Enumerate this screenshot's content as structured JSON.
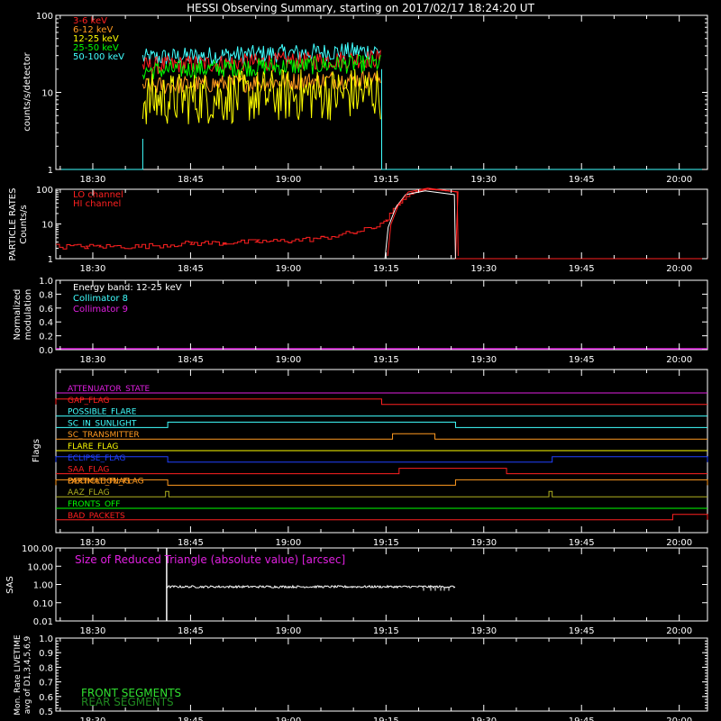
{
  "title": "HESSI Observing Summary, starting on 2017/02/17 18:24:20 UT",
  "time_ticks": [
    "18:30",
    "18:45",
    "19:00",
    "19:15",
    "19:30",
    "19:45",
    "20:00"
  ],
  "colors": {
    "background": "#000000",
    "frame": "#ffffff",
    "red": "#ff2020",
    "orange": "#ff9a20",
    "yellow": "#ffff00",
    "green": "#00ff00",
    "cyan": "#40ffff",
    "magenta": "#e020e0",
    "blue": "#2040ff",
    "olive": "#b0b020",
    "mon_front": "#30e030",
    "mon_rear": "#208a20"
  },
  "panels": {
    "count_rates": {
      "ylabel": "counts/s/detector",
      "yticks": [
        "1",
        "10",
        "100"
      ],
      "legend": [
        "3-6 keV",
        "6-12 keV",
        "12-25 keV",
        "25-50 keV",
        "50-100 keV"
      ]
    },
    "particle_rates": {
      "ylabel_top": "PARTICLE RATES",
      "ylabel_bottom": "Counts/s",
      "yticks": [
        "1",
        "10",
        "100"
      ],
      "legend": [
        "LO channel",
        "HI channel"
      ]
    },
    "modulation": {
      "ylabel_top": "Normalized",
      "ylabel_bottom": "modulation",
      "yticks": [
        "0.0",
        "0.2",
        "0.4",
        "0.6",
        "0.8",
        "1.0"
      ],
      "legend": [
        "Energy band: 12-25 keV",
        "Collimator 8",
        "Collimator 9"
      ]
    },
    "flags": {
      "ylabel": "Flags",
      "labels": [
        "ATTENUATOR_STATE",
        "GAP_FLAG",
        "POSSIBLE_FLARE",
        "SC_IN_SUNLIGHT",
        "SC_TRANSMITTER",
        "FLARE_FLAG",
        "ECLIPSE_FLAG",
        "SAA_FLAG",
        "PARTICLE_FLAG",
        "AAZ_FLAG",
        "FRONTS_OFF",
        "BAD_PACKETS"
      ],
      "overlap_label": "DECIMATION_FLAG"
    },
    "sas": {
      "ylabel": "SAS",
      "yticks": [
        "0.01",
        "0.10",
        "1.00",
        "10.00",
        "100.00"
      ],
      "annotation": "Size of Reduced Triangle (absolute value) [arcsec]"
    },
    "monitor": {
      "ylabel_lines": [
        "Mon. Rate LIVETIME",
        "avg of D1,3,4,5,6,9"
      ],
      "yticks": [
        "0.5",
        "0.6",
        "0.7",
        "0.8",
        "0.9",
        "1.0"
      ],
      "legend": [
        "FRONT SEGMENTS",
        "REAR SEGMENTS"
      ]
    }
  },
  "chart_data": [
    {
      "type": "line",
      "panel": "count_rates",
      "ylabel": "counts/s/detector",
      "yscale": "log",
      "ylim": [
        1,
        100
      ],
      "xlim": [
        "18:24:20",
        "20:04:20"
      ],
      "data_interval": [
        "18:37:40",
        "19:14:20"
      ],
      "series": [
        {
          "name": "3-6 keV",
          "color": "red",
          "level": 22
        },
        {
          "name": "6-12 keV",
          "color": "orange",
          "level": 12
        },
        {
          "name": "12-25 keV",
          "color": "yellow",
          "level": 8
        },
        {
          "name": "25-50 keV",
          "color": "green",
          "level": 19
        },
        {
          "name": "50-100 keV",
          "color": "cyan",
          "level": 28
        }
      ]
    },
    {
      "type": "line",
      "panel": "particle_rates",
      "ylabel": "Counts/s",
      "yscale": "log",
      "ylim": [
        1,
        100
      ],
      "xlim": [
        "18:24:20",
        "20:04:20"
      ],
      "series": [
        {
          "name": "LO channel",
          "color": "red",
          "points": [
            [
              "18:24:20",
              2.2
            ],
            [
              "18:29:00",
              2.2
            ],
            [
              "18:31:00",
              2.2
            ],
            [
              "18:37:00",
              2.2
            ],
            [
              "18:45:00",
              2.7
            ],
            [
              "18:50:00",
              2.8
            ],
            [
              "18:55:00",
              3.0
            ],
            [
              "19:00:00",
              3.2
            ],
            [
              "19:05:00",
              3.8
            ],
            [
              "19:10:00",
              5.5
            ],
            [
              "19:13:00",
              7.5
            ],
            [
              "19:15:00",
              13
            ],
            [
              "19:17:00",
              40
            ],
            [
              "19:19:00",
              80
            ],
            [
              "19:21:00",
              100
            ],
            [
              "19:23:00",
              95
            ],
            [
              "19:25:30",
              85
            ],
            [
              "19:25:40",
              1
            ],
            [
              "20:04:20",
              1
            ]
          ]
        },
        {
          "name": "HI channel",
          "color": "red",
          "points": [
            [
              "19:14:50",
              1
            ],
            [
              "19:15:20",
              8
            ],
            [
              "19:16:30",
              30
            ],
            [
              "19:18:00",
              70
            ],
            [
              "19:21:00",
              90
            ],
            [
              "19:25:30",
              70
            ],
            [
              "19:25:40",
              1
            ]
          ]
        }
      ]
    },
    {
      "type": "line",
      "panel": "modulation",
      "ylabel": "modulation",
      "ylim": [
        0,
        1
      ],
      "series": [
        {
          "name": "Collimator 8",
          "color": "cyan",
          "values": [
            0.0,
            0.0
          ]
        },
        {
          "name": "Collimator 9",
          "color": "magenta",
          "values": [
            0.0,
            0.0
          ]
        }
      ]
    },
    {
      "type": "line",
      "panel": "flags",
      "ylabel": "Flags",
      "series": [
        {
          "name": "ATTENUATOR_STATE",
          "color": "magenta",
          "on": []
        },
        {
          "name": "GAP_FLAG",
          "color": "red",
          "on": [
            [
              "18:24:20",
              "19:14:20"
            ]
          ]
        },
        {
          "name": "POSSIBLE_FLARE",
          "color": "cyan",
          "on": []
        },
        {
          "name": "SC_IN_SUNLIGHT",
          "color": "cyan",
          "on": [
            [
              "18:41:30",
              "19:25:40"
            ]
          ]
        },
        {
          "name": "SC_TRANSMITTER",
          "color": "orange",
          "on": [
            [
              "19:16:00",
              "19:22:30"
            ]
          ]
        },
        {
          "name": "FLARE_FLAG",
          "color": "yellow",
          "on": []
        },
        {
          "name": "ECLIPSE_FLAG",
          "color": "blue",
          "on": [
            [
              "18:24:20",
              "18:41:30"
            ],
            [
              "19:40:30",
              "20:04:20"
            ]
          ]
        },
        {
          "name": "SAA_FLAG",
          "color": "red",
          "on": [
            [
              "19:17:00",
              "19:33:30"
            ]
          ]
        },
        {
          "name": "PARTICLE_FLAG",
          "color": "orange",
          "on": [
            [
              "18:24:20",
              "18:41:30"
            ],
            [
              "19:25:40",
              "20:04:20"
            ]
          ]
        },
        {
          "name": "AAZ_FLAG",
          "color": "olive",
          "on": [
            [
              "18:41:10",
              "18:41:40"
            ],
            [
              "19:40:00",
              "19:40:30"
            ]
          ]
        },
        {
          "name": "FRONTS_OFF",
          "color": "green",
          "on": []
        },
        {
          "name": "BAD_PACKETS",
          "color": "red",
          "on": [
            [
              "19:59:00",
              "20:04:20"
            ]
          ]
        }
      ]
    },
    {
      "type": "line",
      "panel": "sas",
      "ylabel": "SAS",
      "yscale": "log",
      "ylim": [
        0.01,
        100
      ],
      "series": [
        {
          "name": "Size of Reduced Triangle",
          "color": "white",
          "spike_time": "18:41:20",
          "level": 0.75,
          "interval": [
            "18:41:20",
            "19:25:40"
          ]
        }
      ]
    },
    {
      "type": "line",
      "panel": "monitor",
      "ylabel": "Mon. Rate LIVETIME",
      "ylim": [
        0.5,
        1.0
      ],
      "series": [
        {
          "name": "FRONT SEGMENTS",
          "color": "mon_front",
          "values": []
        },
        {
          "name": "REAR SEGMENTS",
          "color": "mon_rear",
          "values": []
        }
      ]
    }
  ]
}
